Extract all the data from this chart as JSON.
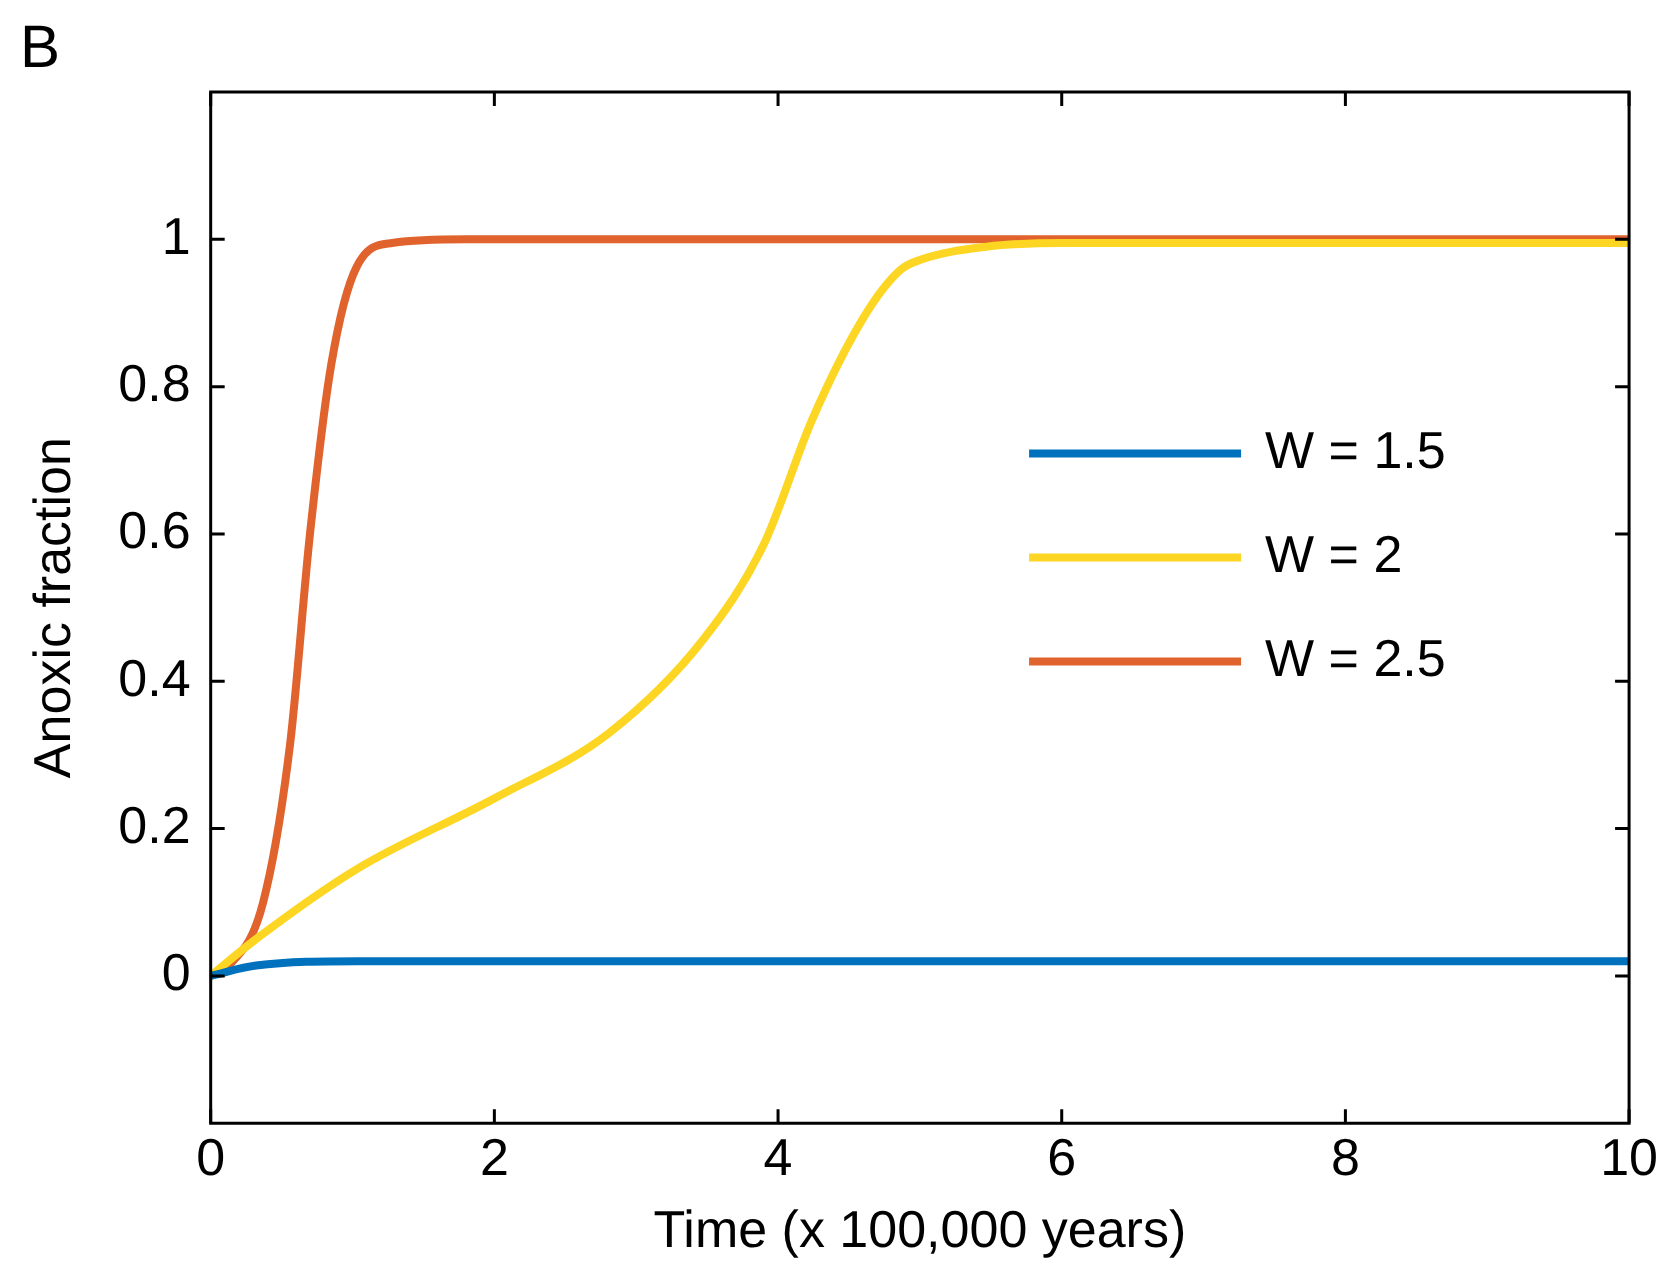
{
  "chart_data": {
    "type": "line",
    "xlabel": "Time (x 100,000 years)",
    "ylabel": "Anoxic fraction",
    "annotations": [
      "B"
    ],
    "xlim": [
      0,
      10
    ],
    "xticks": [
      0,
      2,
      4,
      6,
      8,
      10
    ],
    "ylim": [
      -0.2,
      1.2
    ],
    "yticks": [
      0,
      0.2,
      0.4,
      0.6,
      0.8,
      1
    ],
    "grid": false,
    "legend": "right",
    "marker": "none",
    "line_style": "solid",
    "series": [
      {
        "name": "W = 1.5",
        "color": "#0072bd",
        "x": [
          0,
          0.32,
          1.03,
          2,
          4,
          6,
          8,
          10
        ],
        "values": [
          0,
          0.014,
          0.02,
          0.02,
          0.02,
          0.02,
          0.02,
          0.02
        ]
      },
      {
        "name": "W = 2",
        "color": "#fcd622",
        "x": [
          0,
          0.32,
          1.03,
          1.99,
          2.81,
          3.47,
          3.9,
          4.24,
          4.61,
          4.86,
          5.0,
          5.47,
          6,
          8,
          10
        ],
        "values": [
          0,
          0.05,
          0.145,
          0.24,
          0.33,
          0.456,
          0.586,
          0.755,
          0.896,
          0.958,
          0.972,
          0.99,
          0.995,
          0.995,
          0.995
        ]
      },
      {
        "name": "W = 2.5",
        "color": "#e0622c",
        "x": [
          0,
          0.13,
          0.37,
          0.56,
          0.7,
          0.85,
          1.03,
          1.28,
          1.8,
          4,
          6,
          8,
          10
        ],
        "values": [
          0,
          0.014,
          0.1,
          0.315,
          0.6,
          0.83,
          0.963,
          0.995,
          1,
          1,
          1,
          1,
          1
        ]
      }
    ]
  }
}
